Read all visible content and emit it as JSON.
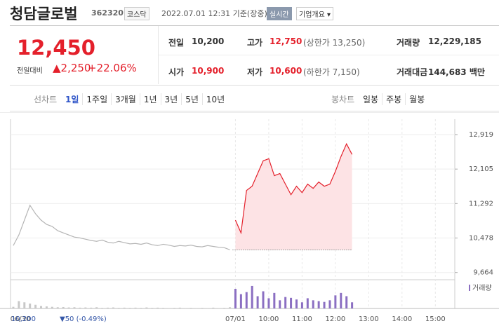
{
  "header": {
    "name": "청담글로벌",
    "code": "362320",
    "market": "코스닥",
    "time": "2022.07.01 12:31 기준(장중)",
    "realtime": "실시간",
    "menu": "기업개요 ▾"
  },
  "quote": {
    "price": "12,450",
    "change_label": "전일대비",
    "change": "▲2,250",
    "rate": "+22.06%",
    "cells": [
      [
        "전일",
        "10,200",
        ""
      ],
      [
        "고가",
        "12,750",
        "(상한가 13,250)"
      ],
      [
        "거래량",
        "12,229,185",
        ""
      ],
      [
        "시가",
        "10,900",
        ""
      ],
      [
        "저가",
        "10,600",
        "(하한가 7,150)"
      ],
      [
        "거래대금",
        "144,683 백만",
        ""
      ]
    ]
  },
  "tabs": {
    "line_label": "선차트",
    "line": [
      "1일",
      "1주일",
      "3개월",
      "1년",
      "3년",
      "5년",
      "10년"
    ],
    "selected": "1일",
    "candle_label": "봉차트",
    "candle": [
      "일봉",
      "주봉",
      "월봉"
    ]
  },
  "footer": {
    "close": "10,200",
    "change": "▼50 (-0.49%)"
  },
  "chart_data": {
    "type": "line",
    "categories": [
      "06/30",
      null,
      null,
      null,
      null,
      null,
      null,
      null,
      null,
      null,
      null,
      null,
      null,
      null,
      null,
      null,
      null,
      null,
      null,
      null,
      null,
      null,
      null,
      null,
      null,
      null,
      null,
      null,
      null,
      null,
      null,
      null,
      null,
      null,
      null,
      null,
      null,
      null,
      null,
      null,
      "07/01",
      null,
      null,
      null,
      null,
      null,
      "10:00",
      null,
      null,
      null,
      null,
      null,
      "11:00",
      null,
      null,
      null,
      null,
      null,
      "12:00",
      null,
      null,
      null,
      null,
      null,
      "13:00",
      null,
      null,
      null,
      null,
      null,
      "14:00",
      null,
      null,
      null,
      null,
      null,
      "15:00",
      null,
      null,
      null
    ],
    "series": [
      {
        "color": "#b5b5b5",
        "values": [
          10300,
          10550,
          10900,
          11250,
          11050,
          10900,
          10800,
          10750,
          10650,
          10600,
          10550,
          10500,
          10480,
          10450,
          10420,
          10400,
          10430,
          10380,
          10360,
          10400,
          10370,
          10340,
          10350,
          10330,
          10360,
          10320,
          10300,
          10330,
          10310,
          10280,
          10300,
          10290,
          10310,
          10280,
          10270,
          10300,
          10280,
          10260,
          10250,
          10200,
          null,
          null,
          null,
          null,
          null,
          null,
          null,
          null,
          null,
          null,
          null,
          null,
          null,
          null,
          null,
          null,
          null,
          null,
          null,
          null,
          null,
          null,
          null,
          null,
          null,
          null,
          null,
          null,
          null,
          null,
          null,
          null,
          null,
          null,
          null,
          null,
          null,
          null,
          null,
          null
        ]
      },
      {
        "color": "#e4202b",
        "values": [
          null,
          null,
          null,
          null,
          null,
          null,
          null,
          null,
          null,
          null,
          null,
          null,
          null,
          null,
          null,
          null,
          null,
          null,
          null,
          null,
          null,
          null,
          null,
          null,
          null,
          null,
          null,
          null,
          null,
          null,
          null,
          null,
          null,
          null,
          null,
          null,
          null,
          null,
          null,
          null,
          10900,
          10600,
          11600,
          11700,
          12000,
          12300,
          12350,
          11950,
          12000,
          11750,
          11500,
          11700,
          11550,
          11750,
          11650,
          11800,
          11700,
          11750,
          12050,
          12400,
          12700,
          12450,
          null,
          null,
          null,
          null,
          null,
          null,
          null,
          null,
          null,
          null,
          null,
          null,
          null,
          null,
          null,
          null,
          null,
          null
        ]
      }
    ],
    "baseline": 10200,
    "ylim": [
      9560,
      13200
    ],
    "yticks": [
      {
        "value": 12919,
        "label": "12,919"
      },
      {
        "value": 12105,
        "label": "12,105"
      },
      {
        "value": 11292,
        "label": "11,292"
      },
      {
        "value": 10478,
        "label": "10,478"
      },
      {
        "value": 9664,
        "label": "9,664"
      }
    ],
    "volume": {
      "label": "거래량",
      "colors": [
        "#c8c8c8",
        "#8b6fc2"
      ],
      "ylim": [
        0,
        600000
      ],
      "values": [
        40000,
        180000,
        150000,
        120000,
        90000,
        60000,
        50000,
        40000,
        30000,
        35000,
        25000,
        30000,
        20000,
        25000,
        20000,
        30000,
        15000,
        20000,
        25000,
        15000,
        20000,
        15000,
        20000,
        15000,
        25000,
        15000,
        20000,
        15000,
        10000,
        15000,
        20000,
        10000,
        15000,
        10000,
        15000,
        10000,
        20000,
        10000,
        15000,
        30000,
        480000,
        350000,
        400000,
        550000,
        300000,
        420000,
        250000,
        380000,
        200000,
        280000,
        260000,
        220000,
        150000,
        250000,
        200000,
        180000,
        160000,
        200000,
        320000,
        380000,
        300000,
        150000,
        null,
        null,
        null,
        null,
        null,
        null,
        null,
        null,
        null,
        null,
        null,
        null,
        null,
        null,
        null,
        null,
        null,
        null
      ]
    },
    "grid": true
  }
}
